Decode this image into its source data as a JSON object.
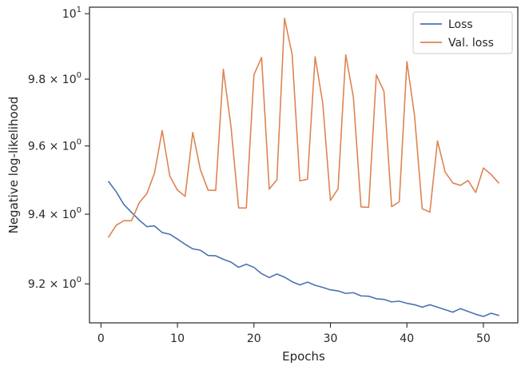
{
  "chart_data": {
    "type": "line",
    "title": "",
    "xlabel": "Epochs",
    "ylabel": "Negative log-likelihood",
    "xlim": [
      -1.5,
      54.5
    ],
    "ylim": [
      9.09,
      10.02
    ],
    "yscale": "log",
    "grid": false,
    "legend_position": "top-right",
    "x_ticks": [
      0,
      10,
      20,
      30,
      40,
      50
    ],
    "x_tick_labels": [
      "0",
      "10",
      "20",
      "30",
      "40",
      "50"
    ],
    "y_ticks": [
      {
        "value": 9.2,
        "mantissa": "9.2",
        "base": "10",
        "exponent": "0"
      },
      {
        "value": 9.4,
        "mantissa": "9.4",
        "base": "10",
        "exponent": "0"
      },
      {
        "value": 9.6,
        "mantissa": "9.6",
        "base": "10",
        "exponent": "0"
      },
      {
        "value": 9.8,
        "mantissa": "9.8",
        "base": "10",
        "exponent": "0"
      },
      {
        "value": 10.0,
        "mantissa": "",
        "base": "10",
        "exponent": "1"
      }
    ],
    "x": [
      1,
      2,
      3,
      4,
      5,
      6,
      7,
      8,
      9,
      10,
      11,
      12,
      13,
      14,
      15,
      16,
      17,
      18,
      19,
      20,
      21,
      22,
      23,
      24,
      25,
      26,
      27,
      28,
      29,
      30,
      31,
      32,
      33,
      34,
      35,
      36,
      37,
      38,
      39,
      40,
      41,
      42,
      43,
      44,
      45,
      46,
      47,
      48,
      49,
      50,
      51,
      52
    ],
    "series": [
      {
        "name": "Loss",
        "color": "#4c72b0",
        "values": [
          9.495,
          9.465,
          9.428,
          9.405,
          9.383,
          9.364,
          9.366,
          9.347,
          9.342,
          9.328,
          9.313,
          9.3,
          9.296,
          9.281,
          9.28,
          9.27,
          9.262,
          9.247,
          9.256,
          9.247,
          9.229,
          9.218,
          9.228,
          9.219,
          9.206,
          9.197,
          9.205,
          9.196,
          9.19,
          9.183,
          9.18,
          9.173,
          9.175,
          9.166,
          9.165,
          9.158,
          9.156,
          9.149,
          9.151,
          9.145,
          9.141,
          9.134,
          9.141,
          9.134,
          9.127,
          9.12,
          9.13,
          9.122,
          9.114,
          9.108,
          9.117,
          9.111
        ]
      },
      {
        "name": "Val. loss",
        "color": "#dd8452",
        "values": [
          9.334,
          9.368,
          9.381,
          9.381,
          9.433,
          9.46,
          9.52,
          9.646,
          9.511,
          9.47,
          9.452,
          9.64,
          9.53,
          9.47,
          9.469,
          9.83,
          9.657,
          9.418,
          9.418,
          9.813,
          9.866,
          9.473,
          9.5,
          9.986,
          9.874,
          9.497,
          9.502,
          9.868,
          9.727,
          9.44,
          9.474,
          9.874,
          9.746,
          9.421,
          9.42,
          9.813,
          9.763,
          9.422,
          9.436,
          9.853,
          9.69,
          9.416,
          9.406,
          9.615,
          9.523,
          9.491,
          9.484,
          9.498,
          9.463,
          9.535,
          9.516,
          9.491
        ]
      }
    ]
  }
}
